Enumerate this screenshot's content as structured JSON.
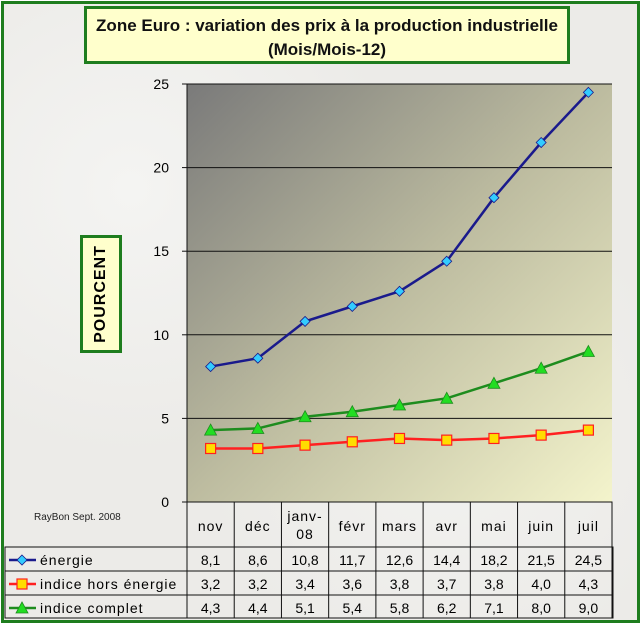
{
  "chart_data": {
    "type": "line",
    "title": "Zone Euro : variation des prix à la production industrielle",
    "subtitle": "(Mois/Mois-12)",
    "ylabel": "POURCENT",
    "xlabel": "",
    "ylim": [
      0,
      25
    ],
    "yticks": [
      "0",
      "5",
      "10",
      "15",
      "20",
      "25"
    ],
    "categories": [
      "nov",
      "déc",
      "janv-08",
      "févr",
      "mars",
      "avr",
      "mai",
      "juin",
      "juil"
    ],
    "category_lines": [
      [
        "nov"
      ],
      [
        "déc"
      ],
      [
        "janv-",
        "08"
      ],
      [
        "févr"
      ],
      [
        "mars"
      ],
      [
        "avr"
      ],
      [
        "mai"
      ],
      [
        "juin"
      ],
      [
        "juil"
      ]
    ],
    "grid": true,
    "legend": "data-table-left",
    "series": [
      {
        "name": "énergie",
        "color": "#1a1a8c",
        "marker": "diamond",
        "marker_color": "#33ccff",
        "values": [
          8.1,
          8.6,
          10.8,
          11.7,
          12.6,
          14.4,
          18.2,
          21.5,
          24.5
        ],
        "labels": [
          "8,1",
          "8,6",
          "10,8",
          "11,7",
          "12,6",
          "14,4",
          "18,2",
          "21,5",
          "24,5"
        ]
      },
      {
        "name": "indice hors énergie",
        "color": "#ff2020",
        "marker": "square",
        "marker_color": "#ffdd00",
        "values": [
          3.2,
          3.2,
          3.4,
          3.6,
          3.8,
          3.7,
          3.8,
          4.0,
          4.3
        ],
        "labels": [
          "3,2",
          "3,2",
          "3,4",
          "3,6",
          "3,8",
          "3,7",
          "3,8",
          "4,0",
          "4,3"
        ]
      },
      {
        "name": "indice complet",
        "color": "#1e8c1e",
        "marker": "triangle",
        "marker_color": "#22dd22",
        "values": [
          4.3,
          4.4,
          5.1,
          5.4,
          5.8,
          6.2,
          7.1,
          8.0,
          9.0
        ],
        "labels": [
          "4,3",
          "4,4",
          "5,1",
          "5,4",
          "5,8",
          "6,2",
          "7,1",
          "8,0",
          "9,0"
        ]
      }
    ]
  },
  "credit": "RayBon Sept. 2008"
}
